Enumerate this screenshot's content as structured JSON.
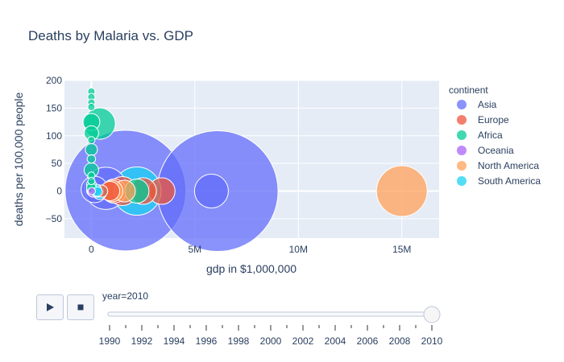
{
  "chart_data": {
    "type": "scatter",
    "title": "Deaths by Malaria vs. GDP",
    "xlabel": "gdp in $1,000,000",
    "ylabel": "deaths per 100,000 people",
    "xlim": [
      -1300000,
      16800000
    ],
    "ylim": [
      -85,
      200
    ],
    "x_ticks": [
      {
        "value": 0,
        "label": "0"
      },
      {
        "value": 5000000,
        "label": "5M"
      },
      {
        "value": 10000000,
        "label": "10M"
      },
      {
        "value": 15000000,
        "label": "15M"
      }
    ],
    "y_ticks": [
      {
        "value": -50,
        "label": "−50"
      },
      {
        "value": 0,
        "label": "0"
      },
      {
        "value": 50,
        "label": "50"
      },
      {
        "value": 100,
        "label": "100"
      },
      {
        "value": 150,
        "label": "150"
      },
      {
        "value": 200,
        "label": "200"
      }
    ],
    "grid": true,
    "legend_title": "continent",
    "legend_position": "right",
    "series": [
      {
        "name": "Asia",
        "color": "#636efa",
        "points": [
          {
            "x": 1650000,
            "y": 1,
            "size": 1.0
          },
          {
            "x": 6100000,
            "y": 0,
            "size": 1.0
          },
          {
            "x": 5800000,
            "y": 0,
            "size": 0.28
          },
          {
            "x": 700000,
            "y": 5,
            "size": 0.35
          },
          {
            "x": 150000,
            "y": 3,
            "size": 0.22
          },
          {
            "x": 60000,
            "y": 1,
            "size": 0.1
          },
          {
            "x": 300000,
            "y": 0,
            "size": 0.1
          }
        ]
      },
      {
        "name": "Europe",
        "color": "#ef553b",
        "points": [
          {
            "x": 3400000,
            "y": 0,
            "size": 0.22
          },
          {
            "x": 2500000,
            "y": 0,
            "size": 0.22
          },
          {
            "x": 1500000,
            "y": 0,
            "size": 0.24
          },
          {
            "x": 1100000,
            "y": 0,
            "size": 0.2
          },
          {
            "x": 900000,
            "y": 0,
            "size": 0.16
          },
          {
            "x": 500000,
            "y": 0,
            "size": 0.1
          }
        ]
      },
      {
        "name": "Africa",
        "color": "#00cc96",
        "points": [
          {
            "x": 0,
            "y": 180,
            "size": 0.06
          },
          {
            "x": 0,
            "y": 170,
            "size": 0.06
          },
          {
            "x": 0,
            "y": 160,
            "size": 0.06
          },
          {
            "x": 0,
            "y": 152,
            "size": 0.06
          },
          {
            "x": 0,
            "y": 125,
            "size": 0.14
          },
          {
            "x": 400000,
            "y": 122,
            "size": 0.26
          },
          {
            "x": 0,
            "y": 105,
            "size": 0.12
          },
          {
            "x": 0,
            "y": 92,
            "size": 0.06
          },
          {
            "x": 0,
            "y": 75,
            "size": 0.1
          },
          {
            "x": 0,
            "y": 58,
            "size": 0.07
          },
          {
            "x": 0,
            "y": 38,
            "size": 0.12
          },
          {
            "x": 0,
            "y": 28,
            "size": 0.06
          },
          {
            "x": 0,
            "y": 18,
            "size": 0.06
          },
          {
            "x": 0,
            "y": 12,
            "size": 0.08
          },
          {
            "x": 0,
            "y": 6,
            "size": 0.08
          },
          {
            "x": 2200000,
            "y": 0,
            "size": 0.2
          }
        ]
      },
      {
        "name": "Oceania",
        "color": "#ab63fa",
        "points": [
          {
            "x": 100000,
            "y": 0,
            "size": 0.1
          },
          {
            "x": 20000,
            "y": 0,
            "size": 0.06
          }
        ]
      },
      {
        "name": "North America",
        "color": "#ffa15a",
        "points": [
          {
            "x": 15000000,
            "y": 0,
            "size": 0.42
          },
          {
            "x": 1600000,
            "y": 0,
            "size": 0.18
          },
          {
            "x": 1000000,
            "y": 0,
            "size": 0.18
          }
        ]
      },
      {
        "name": "South America",
        "color": "#19d3f3",
        "points": [
          {
            "x": 2200000,
            "y": 0,
            "size": 0.4
          },
          {
            "x": 400000,
            "y": -2,
            "size": 0.12
          },
          {
            "x": 200000,
            "y": 2,
            "size": 0.1
          },
          {
            "x": 300000,
            "y": -1,
            "size": 0.08
          }
        ]
      }
    ],
    "slider": {
      "current_label": "year=2010",
      "active_year": 2010,
      "year_labels": [
        "1990",
        "1992",
        "1994",
        "1996",
        "1998",
        "2000",
        "2002",
        "2004",
        "2006",
        "2008",
        "2010"
      ],
      "year_range": [
        1990,
        2010
      ]
    }
  },
  "controls": {
    "play_icon": "play-icon",
    "stop_icon": "stop-icon"
  }
}
